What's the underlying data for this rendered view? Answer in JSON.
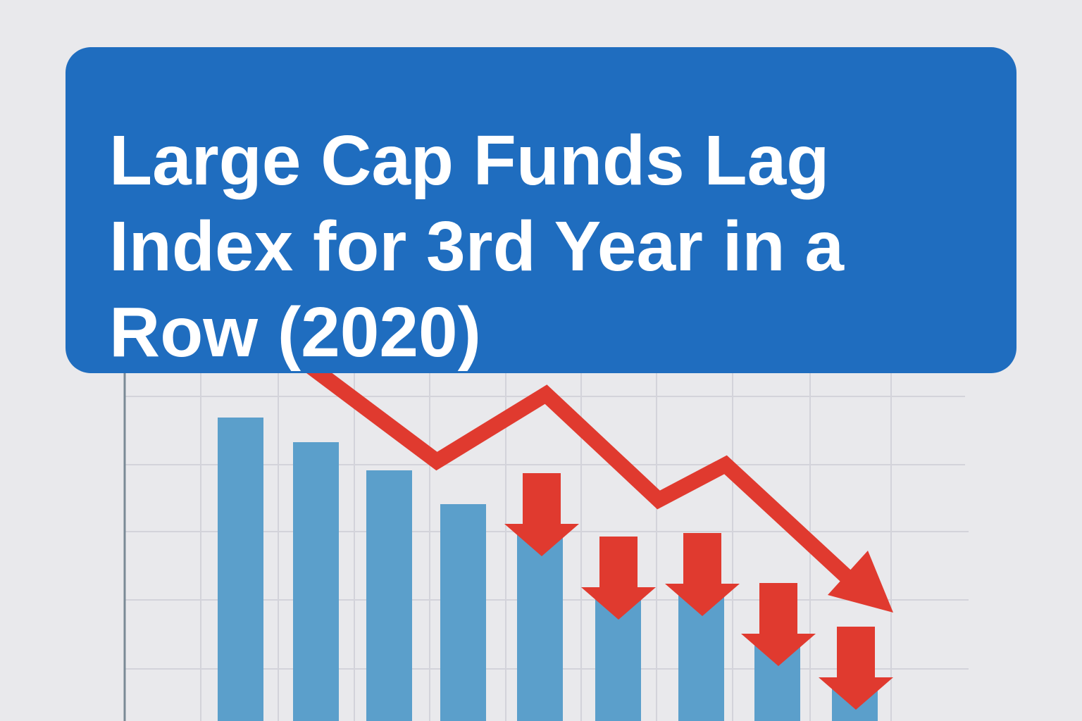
{
  "header": {
    "title": "Large Cap Funds Lag Index for 3rd Year in a Row (2020)"
  }
}
